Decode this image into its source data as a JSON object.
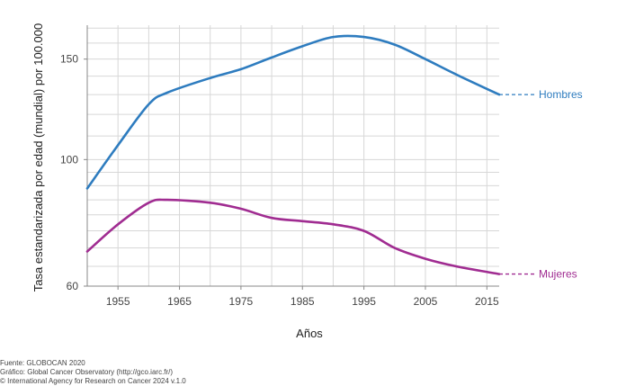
{
  "chart_data": {
    "type": "line",
    "xlabel": "Años",
    "ylabel": "Tasa estandarizada por edad (mundial) por 100.000",
    "scale": "log",
    "xlim": [
      1950,
      2017
    ],
    "ylim": [
      60,
      172
    ],
    "x_ticks": [
      1955,
      1965,
      1975,
      1985,
      1995,
      2005,
      2015
    ],
    "x_tick_labels": [
      "1955",
      "1965",
      "1975",
      "1985",
      "1995",
      "2005",
      "2015"
    ],
    "y_ticks": [
      60,
      100,
      150
    ],
    "y_tick_labels": [
      "60",
      "100",
      "150"
    ],
    "grid": true,
    "colors": {
      "hombres": "#2e7cbf",
      "mujeres": "#a02c91"
    },
    "x": [
      1950,
      1955,
      1960,
      1963,
      1970,
      1975,
      1980,
      1985,
      1990,
      1995,
      2000,
      2005,
      2010,
      2017
    ],
    "series": [
      {
        "name": "Hombres",
        "color": "#2e7cbf",
        "values": [
          89,
          106,
          125,
          131,
          139,
          144,
          151,
          158,
          164,
          164,
          159,
          150,
          141,
          130
        ]
      },
      {
        "name": "Mujeres",
        "color": "#a02c91",
        "values": [
          69,
          77,
          84,
          85,
          84,
          82,
          79,
          78,
          77,
          75,
          70,
          67,
          65,
          63
        ]
      }
    ]
  },
  "footer": {
    "source": "Fuente: GLOBOCAN 2020",
    "graphic": "Gráfico: Global Cancer Observatory (http://gco.iarc.fr/)",
    "copyright": "© International Agency for Research on Cancer 2024 v.1.0"
  }
}
